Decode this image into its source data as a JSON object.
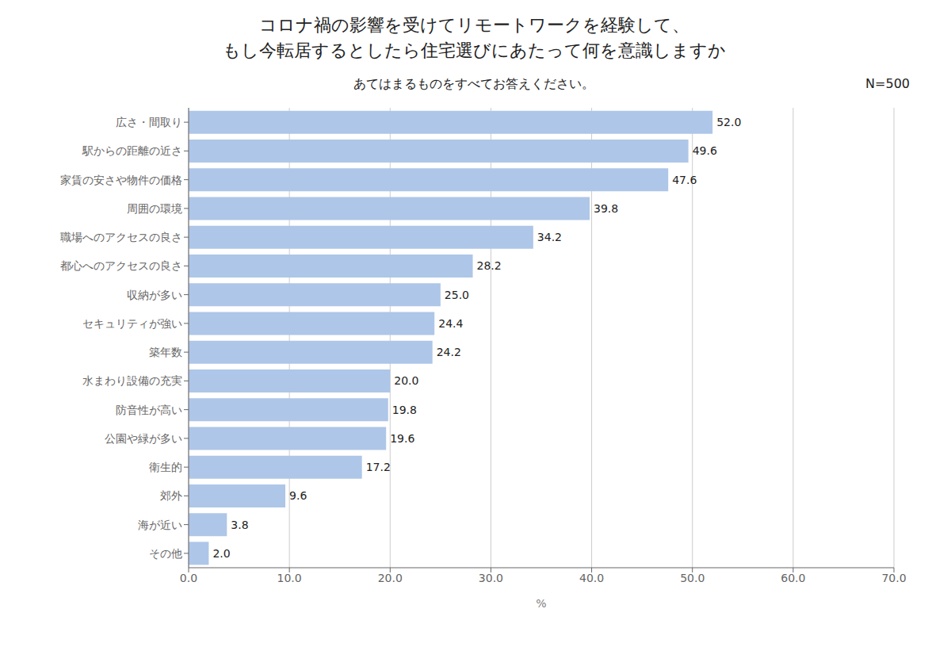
{
  "chart_data": {
    "type": "bar",
    "orientation": "horizontal",
    "title": "コロナ禍の影響を受けてリモートワークを経験して、\nもし今転居するとしたら住宅選びにあたって何を意識しますか",
    "subtitle": "あてはまるものをすべてお答えください。",
    "annotations": [
      "N=500"
    ],
    "x_label": "%",
    "categories": [
      "広さ・間取り",
      "駅からの距離の近さ",
      "家賃の安さや物件の価格",
      "周囲の環境",
      "職場へのアクセスの良さ",
      "都心へのアクセスの良さ",
      "収納が多い",
      "セキュリティが強い",
      "築年数",
      "水まわり設備の充実",
      "防音性が高い",
      "公園や緑が多い",
      "衛生的",
      "郊外",
      "海が近い",
      "その他"
    ],
    "values": [
      52.0,
      49.6,
      47.6,
      39.8,
      34.2,
      28.2,
      25.0,
      24.4,
      24.2,
      20.0,
      19.8,
      19.6,
      17.2,
      9.6,
      3.8,
      2.0
    ],
    "value_labels": [
      "52.0",
      "49.6",
      "47.6",
      "39.8",
      "34.2",
      "28.2",
      "25.0",
      "24.4",
      "24.2",
      "20.0",
      "19.8",
      "19.6",
      "17.2",
      "9.6",
      "3.8",
      "2.0"
    ],
    "data_labels": true,
    "color": "#aec6e8",
    "xlim": [
      0,
      70.0
    ],
    "xticks": [
      {
        "value": 0,
        "label": "0.0"
      },
      {
        "value": 10,
        "label": "10.0"
      },
      {
        "value": 20,
        "label": "20.0"
      },
      {
        "value": 30,
        "label": "30.0"
      },
      {
        "value": 40,
        "label": "40.0"
      },
      {
        "value": 50,
        "label": "50.0"
      },
      {
        "value": 60,
        "label": "60.0"
      },
      {
        "value": 70,
        "label": "70.0"
      }
    ],
    "grid": true
  }
}
